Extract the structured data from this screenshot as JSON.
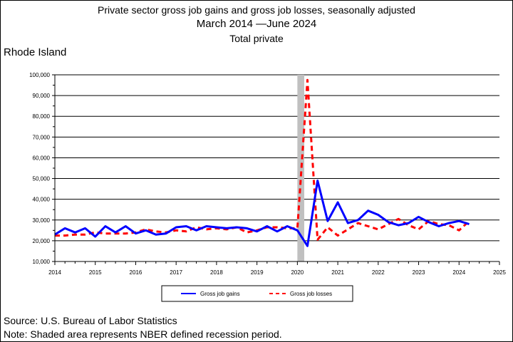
{
  "chart_data": {
    "type": "line",
    "title": "Private sector gross job gains and gross job losses, seasonally adjusted",
    "subtitle": "March 2014 —June 2024",
    "subtitle2": "Total private",
    "region": "Rhode Island",
    "ylim": [
      10000,
      100000
    ],
    "xlim": [
      2014,
      2025
    ],
    "y_ticks": [
      "10,000",
      "20,000",
      "30,000",
      "40,000",
      "50,000",
      "60,000",
      "70,000",
      "80,000",
      "90,000",
      "100,000"
    ],
    "x_ticks": [
      "2014",
      "2015",
      "2016",
      "2017",
      "2018",
      "2019",
      "2020",
      "2021",
      "2022",
      "2023",
      "2024",
      "2025"
    ],
    "grid": true,
    "legend_position": "bottom",
    "recession": {
      "start": 2020.0,
      "end": 2020.17
    },
    "x": [
      2014.0,
      2014.25,
      2014.5,
      2014.75,
      2015.0,
      2015.25,
      2015.5,
      2015.75,
      2016.0,
      2016.25,
      2016.5,
      2016.75,
      2017.0,
      2017.25,
      2017.5,
      2017.75,
      2018.0,
      2018.25,
      2018.5,
      2018.75,
      2019.0,
      2019.25,
      2019.5,
      2019.75,
      2020.0,
      2020.25,
      2020.5,
      2020.75,
      2021.0,
      2021.25,
      2021.5,
      2021.75,
      2022.0,
      2022.25,
      2022.5,
      2022.75,
      2023.0,
      2023.25,
      2023.5,
      2023.75,
      2024.0,
      2024.25
    ],
    "series": [
      {
        "name": "Gross job gains",
        "color": "#0000ff",
        "style": "solid",
        "values": [
          23000,
          26000,
          24000,
          26000,
          22000,
          27000,
          24000,
          27000,
          23500,
          25000,
          23000,
          23500,
          26500,
          27000,
          25000,
          27000,
          26500,
          26000,
          26500,
          26000,
          24500,
          27000,
          24500,
          27000,
          25000,
          17500,
          49000,
          29500,
          38500,
          28500,
          30000,
          34500,
          32500,
          29000,
          27500,
          28500,
          31500,
          29000,
          27000,
          28500,
          29500,
          28000
        ]
      },
      {
        "name": "Gross job losses",
        "color": "#ff0000",
        "style": "dashed",
        "values": [
          22500,
          22500,
          23000,
          23000,
          24000,
          23500,
          23500,
          23500,
          24000,
          25500,
          24500,
          24000,
          25000,
          24500,
          26500,
          25500,
          26000,
          25500,
          26500,
          24000,
          25000,
          26500,
          26500,
          26000,
          26000,
          97500,
          20500,
          26500,
          22500,
          25500,
          28500,
          27000,
          25500,
          28000,
          30500,
          27500,
          25500,
          29500,
          28000,
          27500,
          25000,
          29500
        ]
      }
    ],
    "legend": {
      "gains_label": "Gross job gains",
      "losses_label": "Gross job losses"
    }
  },
  "footer": {
    "source": "Source: U.S. Bureau of Labor Statistics",
    "note": "Note: Shaded area represents NBER defined recession period."
  }
}
